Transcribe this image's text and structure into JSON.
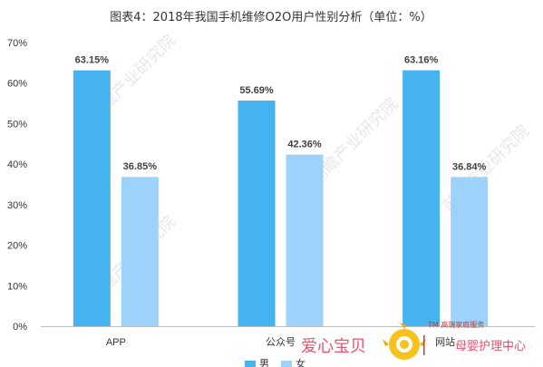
{
  "chart_data": {
    "type": "bar",
    "title": "图表4：2018年我国手机维修O2O用户性别分析（单位：%）",
    "categories": [
      "APP",
      "公众号",
      "网站"
    ],
    "series": [
      {
        "name": "男",
        "values": [
          63.15,
          55.69,
          63.16
        ],
        "labels": [
          "63.15%",
          "55.69%",
          "63.16%"
        ],
        "color": "#45b3f0"
      },
      {
        "name": "女",
        "values": [
          36.85,
          42.36,
          36.84
        ],
        "labels": [
          "36.85%",
          "42.36%",
          "36.84%"
        ],
        "color": "#9dd3fa"
      }
    ],
    "ylim": [
      0,
      70
    ],
    "yticks": [
      0,
      10,
      20,
      30,
      40,
      50,
      60,
      70
    ],
    "yticklabels": [
      "0%",
      "10%",
      "20%",
      "30%",
      "40%",
      "50%",
      "60%",
      "70%"
    ],
    "grid": false,
    "legend_position": "bottom"
  },
  "watermark": {
    "text": "前瞻产业研究院"
  },
  "overlay_logo": {
    "brand": "爱心宝贝",
    "tm_line": "TM 高端家庭服务",
    "slogan": "母婴护理中心"
  }
}
